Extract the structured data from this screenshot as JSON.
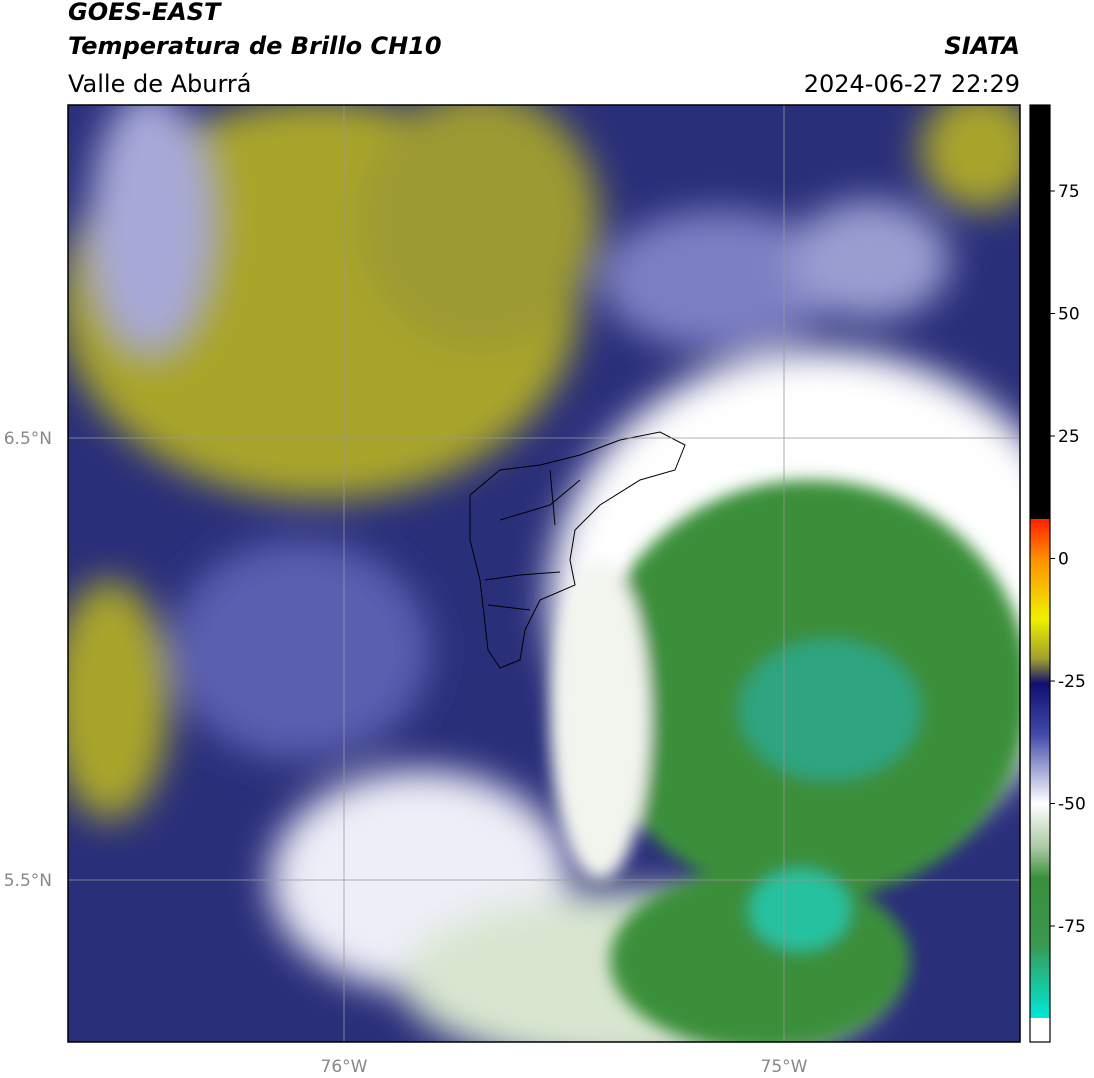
{
  "header": {
    "title": "GOES-EAST",
    "subtitle": "Temperatura de Brillo CH10",
    "source": "SIATA",
    "region": "Valle de Aburrá",
    "timestamp": "2024-06-27 22:29"
  },
  "map": {
    "lat_labels": [
      "6.5°N",
      "5.5°N"
    ],
    "lon_labels": [
      "76°W",
      "75°W"
    ]
  },
  "colorbar": {
    "ticks": [
      75,
      50,
      25,
      0,
      -25,
      -50,
      -75
    ]
  }
}
